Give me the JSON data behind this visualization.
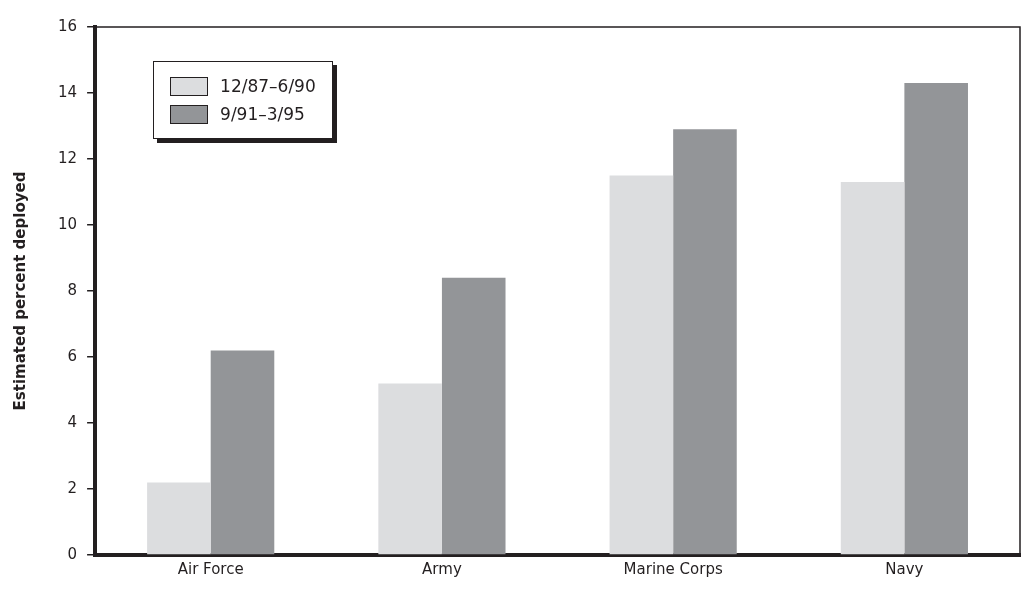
{
  "chart_data": {
    "type": "bar",
    "ylabel": "Estimated percent deployed",
    "categories": [
      "Air Force",
      "Army",
      "Marine Corps",
      "Navy"
    ],
    "series": [
      {
        "name": "12/87–6/90",
        "color": "#dcdddf",
        "values": [
          2.2,
          5.2,
          11.5,
          11.3
        ]
      },
      {
        "name": "9/91–3/95",
        "color": "#939598",
        "values": [
          6.2,
          8.4,
          12.9,
          14.3
        ]
      }
    ],
    "ylim": [
      0,
      16
    ],
    "yticks": [
      0,
      2,
      4,
      6,
      8,
      10,
      12,
      14,
      16
    ],
    "grid": false,
    "legend": "top left"
  }
}
